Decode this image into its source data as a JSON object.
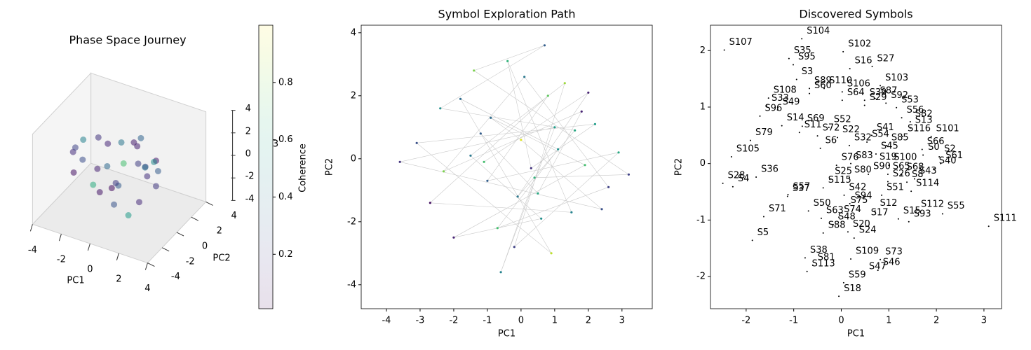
{
  "chart_data": [
    {
      "type": "scatter3d",
      "title": "Phase Space Journey",
      "xlabel": "PC1",
      "ylabel": "PC2",
      "zlabel": "3",
      "xlim": [
        -4,
        4
      ],
      "ylim": [
        -4,
        4
      ],
      "zlim": [
        -4,
        4
      ],
      "xticks": [
        -4,
        -2,
        0,
        2,
        4
      ],
      "yticks": [
        -4,
        -2,
        0,
        2,
        4
      ],
      "zticks": [
        -4,
        -2,
        0,
        2,
        4
      ],
      "x": [
        -1.2,
        0.5,
        1.8,
        -2.3,
        0.1,
        2.4,
        -0.7,
        1.1,
        -1.8,
        0.9,
        -2.8,
        2.0,
        0.3,
        -0.4,
        1.5,
        -2.5,
        0.8,
        -1.0,
        2.6,
        -0.2,
        1.3,
        -1.5,
        0.6,
        -2.0,
        1.9,
        -0.9,
        0.0,
        2.2,
        -3.0,
        1.0
      ],
      "y": [
        0.8,
        -1.1,
        1.5,
        -0.4,
        2.4,
        -0.9,
        -2.2,
        0.3,
        1.9,
        -2.8,
        0.5,
        1.1,
        -0.3,
        2.8,
        -1.7,
        -1.4,
        2.0,
        -0.7,
        0.2,
        -2.6,
        2.2,
        0.1,
        -1.9,
        -2.3,
        -0.2,
        1.3,
        0.6,
        -1.6,
        -0.1,
        1.0
      ],
      "z": [
        1.1,
        -0.6,
        0.4,
        1.8,
        -1.2,
        0.9,
        -0.3,
        2.2,
        -1.9,
        0.5,
        -0.8,
        -1.5,
        2.6,
        0.2,
        -2.4,
        1.3,
        -0.9,
        -2.1,
        0.7,
        1.6,
        -0.4,
        2.0,
        -1.7,
        0.3,
        1.0,
        -2.6,
        0.0,
        -1.0,
        0.6,
        2.4
      ],
      "c": [
        0.12,
        0.3,
        0.08,
        0.45,
        0.2,
        0.15,
        0.62,
        0.1,
        0.35,
        0.05,
        0.25,
        0.18,
        0.4,
        0.09,
        0.55,
        0.14,
        0.22,
        0.07,
        0.3,
        0.11,
        0.48,
        0.16,
        0.27,
        0.06,
        0.38,
        0.19,
        0.7,
        0.13,
        0.21,
        0.33
      ],
      "colorbar": {
        "label": "Coherence",
        "clim": [
          0.01,
          1.0
        ],
        "ticks": [
          0.2,
          0.4,
          0.6,
          0.8
        ]
      }
    },
    {
      "type": "scatter",
      "title": "Symbol Exploration Path",
      "xlabel": "PC1",
      "ylabel": "PC2",
      "path_color": "#bdbdbd",
      "xlim": [
        -4.75,
        3.9
      ],
      "ylim": [
        -4.76,
        4.24
      ],
      "xticks": [
        -4,
        -3,
        -2,
        -1,
        0,
        1,
        2,
        3
      ],
      "yticks": [
        -4,
        -2,
        0,
        2,
        4
      ],
      "x": [
        -1.2,
        0.5,
        1.8,
        -2.3,
        0.1,
        2.6,
        -0.7,
        1.1,
        -1.8,
        0.9,
        -3.1,
        2.2,
        0.3,
        -0.4,
        1.5,
        -2.7,
        0.8,
        -1.0,
        2.9,
        -0.2,
        1.3,
        -1.5,
        0.6,
        -2.0,
        1.9,
        -0.9,
        0.0,
        2.4,
        -3.6,
        1.0,
        -0.6,
        0.4,
        3.2,
        -1.4,
        0.7,
        -2.4,
        1.6,
        -0.1,
        2.0,
        -1.1
      ],
      "y": [
        0.8,
        -1.1,
        1.5,
        -0.4,
        2.6,
        -0.9,
        -2.2,
        0.3,
        1.9,
        -3.0,
        0.5,
        1.1,
        -0.3,
        3.1,
        -1.7,
        -1.4,
        2.0,
        -0.7,
        0.2,
        -2.8,
        2.4,
        0.1,
        -1.9,
        -2.5,
        -0.2,
        1.3,
        0.6,
        -1.6,
        -0.1,
        1.0,
        -3.6,
        -0.6,
        -0.5,
        2.8,
        3.6,
        1.6,
        0.9,
        -1.2,
        2.1,
        -0.1
      ],
      "c": [
        0.3,
        0.6,
        0.1,
        0.8,
        0.4,
        0.2,
        0.7,
        0.5,
        0.35,
        0.9,
        0.25,
        0.55,
        0.15,
        0.65,
        0.45,
        0.05,
        0.75,
        0.3,
        0.6,
        0.2,
        0.85,
        0.4,
        0.5,
        0.1,
        0.7,
        0.35,
        0.95,
        0.25,
        0.15,
        0.55,
        0.45,
        0.65,
        0.2,
        0.8,
        0.3,
        0.5,
        0.6,
        0.4,
        0.1,
        0.7
      ]
    },
    {
      "type": "scatter",
      "title": "Discovered Symbols",
      "xlabel": "PC1",
      "ylabel": "PC2",
      "color": "#000000",
      "xlim": [
        -2.75,
        3.37
      ],
      "ylim": [
        -2.57,
        2.45
      ],
      "xticks": [
        -2,
        -1,
        0,
        1,
        2,
        3
      ],
      "yticks": [
        -2,
        -1,
        0,
        1,
        2
      ],
      "labels": [
        "S107",
        "S104",
        "S102",
        "S35",
        "S95",
        "S16",
        "S27",
        "S3",
        "S103",
        "S89",
        "S110",
        "S60",
        "S106",
        "S108",
        "S64",
        "S39",
        "S87",
        "S92",
        "S33",
        "S49",
        "S53",
        "S29",
        "S96",
        "S56",
        "S13",
        "S82",
        "S14",
        "S69",
        "S11",
        "S52",
        "S72",
        "S22",
        "S116",
        "S101",
        "S79",
        "S32",
        "S54",
        "S85",
        "S41",
        "S6",
        "S66",
        "S45",
        "S0",
        "S2",
        "S105",
        "S76",
        "S83",
        "S19",
        "S100",
        "S61",
        "S40",
        "S36",
        "S90",
        "S65",
        "S68",
        "S80",
        "S25",
        "S43",
        "S26",
        "S8",
        "S28",
        "S4",
        "S115",
        "S114",
        "S42",
        "S51",
        "S57",
        "S37",
        "S94",
        "S75",
        "S50",
        "S12",
        "S112",
        "S55",
        "S71",
        "S63",
        "S74",
        "S15",
        "S93",
        "S17",
        "S48",
        "S111",
        "S88",
        "S20",
        "S24",
        "S5",
        "S38",
        "S109",
        "S73",
        "S81",
        "S46",
        "S113",
        "S47",
        "S59",
        "S18"
      ],
      "x": [
        -2.46,
        -0.83,
        0.04,
        -1.1,
        -1.01,
        0.18,
        0.65,
        -0.94,
        0.82,
        -0.67,
        -0.36,
        -0.67,
        0.02,
        -1.53,
        0.02,
        0.49,
        0.71,
        0.94,
        -1.57,
        -1.34,
        1.16,
        0.49,
        -1.71,
        1.27,
        1.45,
        1.45,
        -1.25,
        -0.82,
        -0.88,
        -0.26,
        -0.5,
        -0.08,
        1.29,
        1.89,
        -1.91,
        0.17,
        0.54,
        0.95,
        0.64,
        -0.44,
        1.7,
        0.73,
        1.72,
        2.06,
        -2.31,
        -0.1,
        0.2,
        0.7,
        1.0,
        2.09,
        1.95,
        -1.79,
        0.57,
        0.98,
        1.27,
        0.17,
        -0.24,
        1.54,
        0.98,
        1.38,
        -2.49,
        -2.28,
        -0.38,
        1.47,
        0.06,
        0.85,
        -1.12,
        -1.13,
        0.18,
        0.09,
        -0.69,
        0.71,
        1.57,
        2.13,
        -1.63,
        -0.42,
        -0.05,
        1.2,
        1.42,
        0.52,
        -0.17,
        3.1,
        -0.38,
        0.14,
        0.27,
        -1.87,
        -0.76,
        0.2,
        0.82,
        -0.6,
        0.77,
        -0.72,
        0.48,
        0.05,
        -0.05
      ],
      "y": [
        2.01,
        2.21,
        1.98,
        1.86,
        1.75,
        1.68,
        1.72,
        1.49,
        1.38,
        1.33,
        1.33,
        1.24,
        1.27,
        1.16,
        1.12,
        1.12,
        1.15,
        1.07,
        1.02,
        0.95,
        0.99,
        1.03,
        0.84,
        0.81,
        0.63,
        0.74,
        0.67,
        0.66,
        0.55,
        0.64,
        0.49,
        0.46,
        0.48,
        0.48,
        0.41,
        0.32,
        0.38,
        0.32,
        0.5,
        0.27,
        0.25,
        0.17,
        0.15,
        0.12,
        0.12,
        -0.03,
        0.0,
        -0.02,
        -0.03,
        0.0,
        -0.09,
        -0.24,
        -0.19,
        -0.19,
        -0.2,
        -0.25,
        -0.28,
        -0.27,
        -0.32,
        -0.33,
        -0.35,
        -0.41,
        -0.43,
        -0.49,
        -0.56,
        -0.56,
        -0.55,
        -0.58,
        -0.71,
        -0.79,
        -0.84,
        -0.84,
        -0.86,
        -0.89,
        -0.94,
        -0.97,
        -0.95,
        -0.98,
        -1.03,
        -1.01,
        -1.08,
        -1.11,
        -1.23,
        -1.21,
        -1.32,
        -1.36,
        -1.67,
        -1.69,
        -1.7,
        -1.8,
        -1.89,
        -1.91,
        -1.96,
        -2.11,
        -2.35
      ]
    }
  ]
}
